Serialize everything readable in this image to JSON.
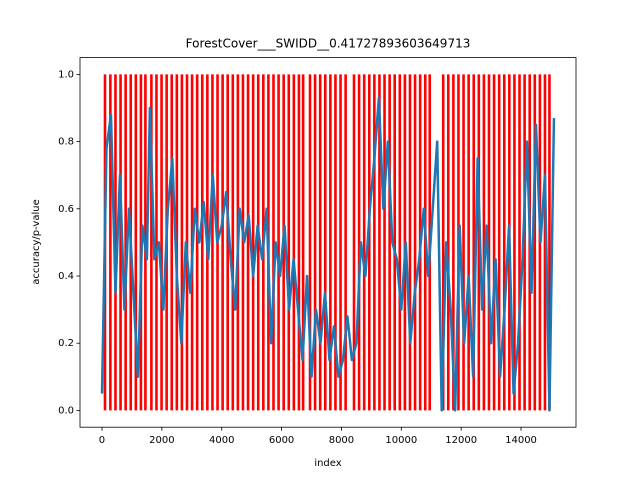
{
  "chart_data": {
    "type": "line",
    "title": "ForestCover___SWIDD__0.41727893603649713",
    "x_label": "index",
    "y_label": "accuracy/p-value",
    "xlim": [
      -735,
      15837
    ],
    "ylim": [
      -0.05,
      1.05
    ],
    "xticks": [
      0,
      2000,
      4000,
      6000,
      8000,
      10000,
      12000,
      14000
    ],
    "yticks": [
      {
        "value": 0,
        "label": "0.0"
      },
      0.2,
      0.4,
      0.6,
      0.8,
      {
        "value": 1,
        "label": "1.0"
      }
    ],
    "series": [
      {
        "type": "vlines",
        "color": "#ff0000",
        "ymin": 0,
        "ymax": 1,
        "x": [
          100,
          280,
          450,
          620,
          790,
          960,
          1130,
          1300,
          1450,
          1650,
          1820,
          1990,
          2160,
          2330,
          2500,
          2670,
          2840,
          3010,
          3180,
          3350,
          3520,
          3690,
          3860,
          4030,
          4200,
          4370,
          4540,
          4710,
          4880,
          5050,
          5220,
          5390,
          5560,
          5730,
          5900,
          6070,
          6240,
          6410,
          6580,
          6720,
          6950,
          7120,
          7290,
          7460,
          7630,
          7800,
          7970,
          8140,
          8420,
          8590,
          8760,
          8930,
          9100,
          9270,
          9440,
          9610,
          9780,
          9950,
          10120,
          10290,
          10460,
          10630,
          10800,
          10950,
          11400,
          11570,
          11740,
          11910,
          12080,
          12250,
          12420,
          12590,
          12760,
          12930,
          13100,
          13270,
          13440,
          13610,
          13780,
          13950,
          14120,
          14290,
          14460,
          14630,
          14800,
          14950
        ]
      },
      {
        "type": "line",
        "color": "#1f77b4",
        "x": [
          0,
          150,
          300,
          450,
          600,
          750,
          900,
          1050,
          1200,
          1350,
          1500,
          1600,
          1750,
          1900,
          2050,
          2200,
          2350,
          2500,
          2650,
          2800,
          2950,
          3100,
          3250,
          3400,
          3550,
          3700,
          3850,
          4000,
          4150,
          4300,
          4450,
          4600,
          4750,
          4900,
          5050,
          5200,
          5350,
          5500,
          5650,
          5800,
          5950,
          6100,
          6250,
          6400,
          6550,
          6700,
          6850,
          7000,
          7150,
          7300,
          7450,
          7600,
          7750,
          7900,
          8050,
          8200,
          8350,
          8500,
          8650,
          8800,
          8950,
          9100,
          9250,
          9400,
          9550,
          9700,
          9850,
          10000,
          10150,
          10300,
          10450,
          10600,
          10750,
          10900,
          11050,
          11200,
          11350,
          11500,
          11650,
          11800,
          11950,
          12100,
          12250,
          12400,
          12550,
          12700,
          12850,
          13000,
          13150,
          13300,
          13450,
          13600,
          13750,
          13900,
          14050,
          14200,
          14350,
          14500,
          14650,
          14800,
          14950,
          15100
        ],
        "values": [
          0.05,
          0.78,
          0.88,
          0.35,
          0.7,
          0.3,
          0.6,
          0.35,
          0.1,
          0.55,
          0.45,
          0.9,
          0.45,
          0.5,
          0.3,
          0.6,
          0.75,
          0.4,
          0.2,
          0.5,
          0.35,
          0.6,
          0.5,
          0.62,
          0.45,
          0.7,
          0.5,
          0.55,
          0.65,
          0.45,
          0.3,
          0.6,
          0.5,
          0.58,
          0.4,
          0.55,
          0.45,
          0.6,
          0.2,
          0.5,
          0.4,
          0.55,
          0.3,
          0.45,
          0.3,
          0.15,
          0.4,
          0.1,
          0.3,
          0.2,
          0.35,
          0.15,
          0.25,
          0.1,
          0.15,
          0.28,
          0.15,
          0.2,
          0.5,
          0.4,
          0.6,
          0.75,
          0.93,
          0.6,
          0.8,
          0.5,
          0.45,
          0.3,
          0.5,
          0.2,
          0.35,
          0.45,
          0.6,
          0.4,
          0.6,
          0.8,
          0,
          0.5,
          0.3,
          0,
          0.55,
          0.2,
          0.4,
          0.1,
          0.75,
          0.3,
          0.55,
          0.2,
          0.45,
          0.1,
          0.3,
          0.55,
          0.05,
          0.2,
          0.45,
          0.8,
          0.35,
          0.85,
          0.5,
          0.7,
          0,
          0.87
        ]
      }
    ]
  }
}
